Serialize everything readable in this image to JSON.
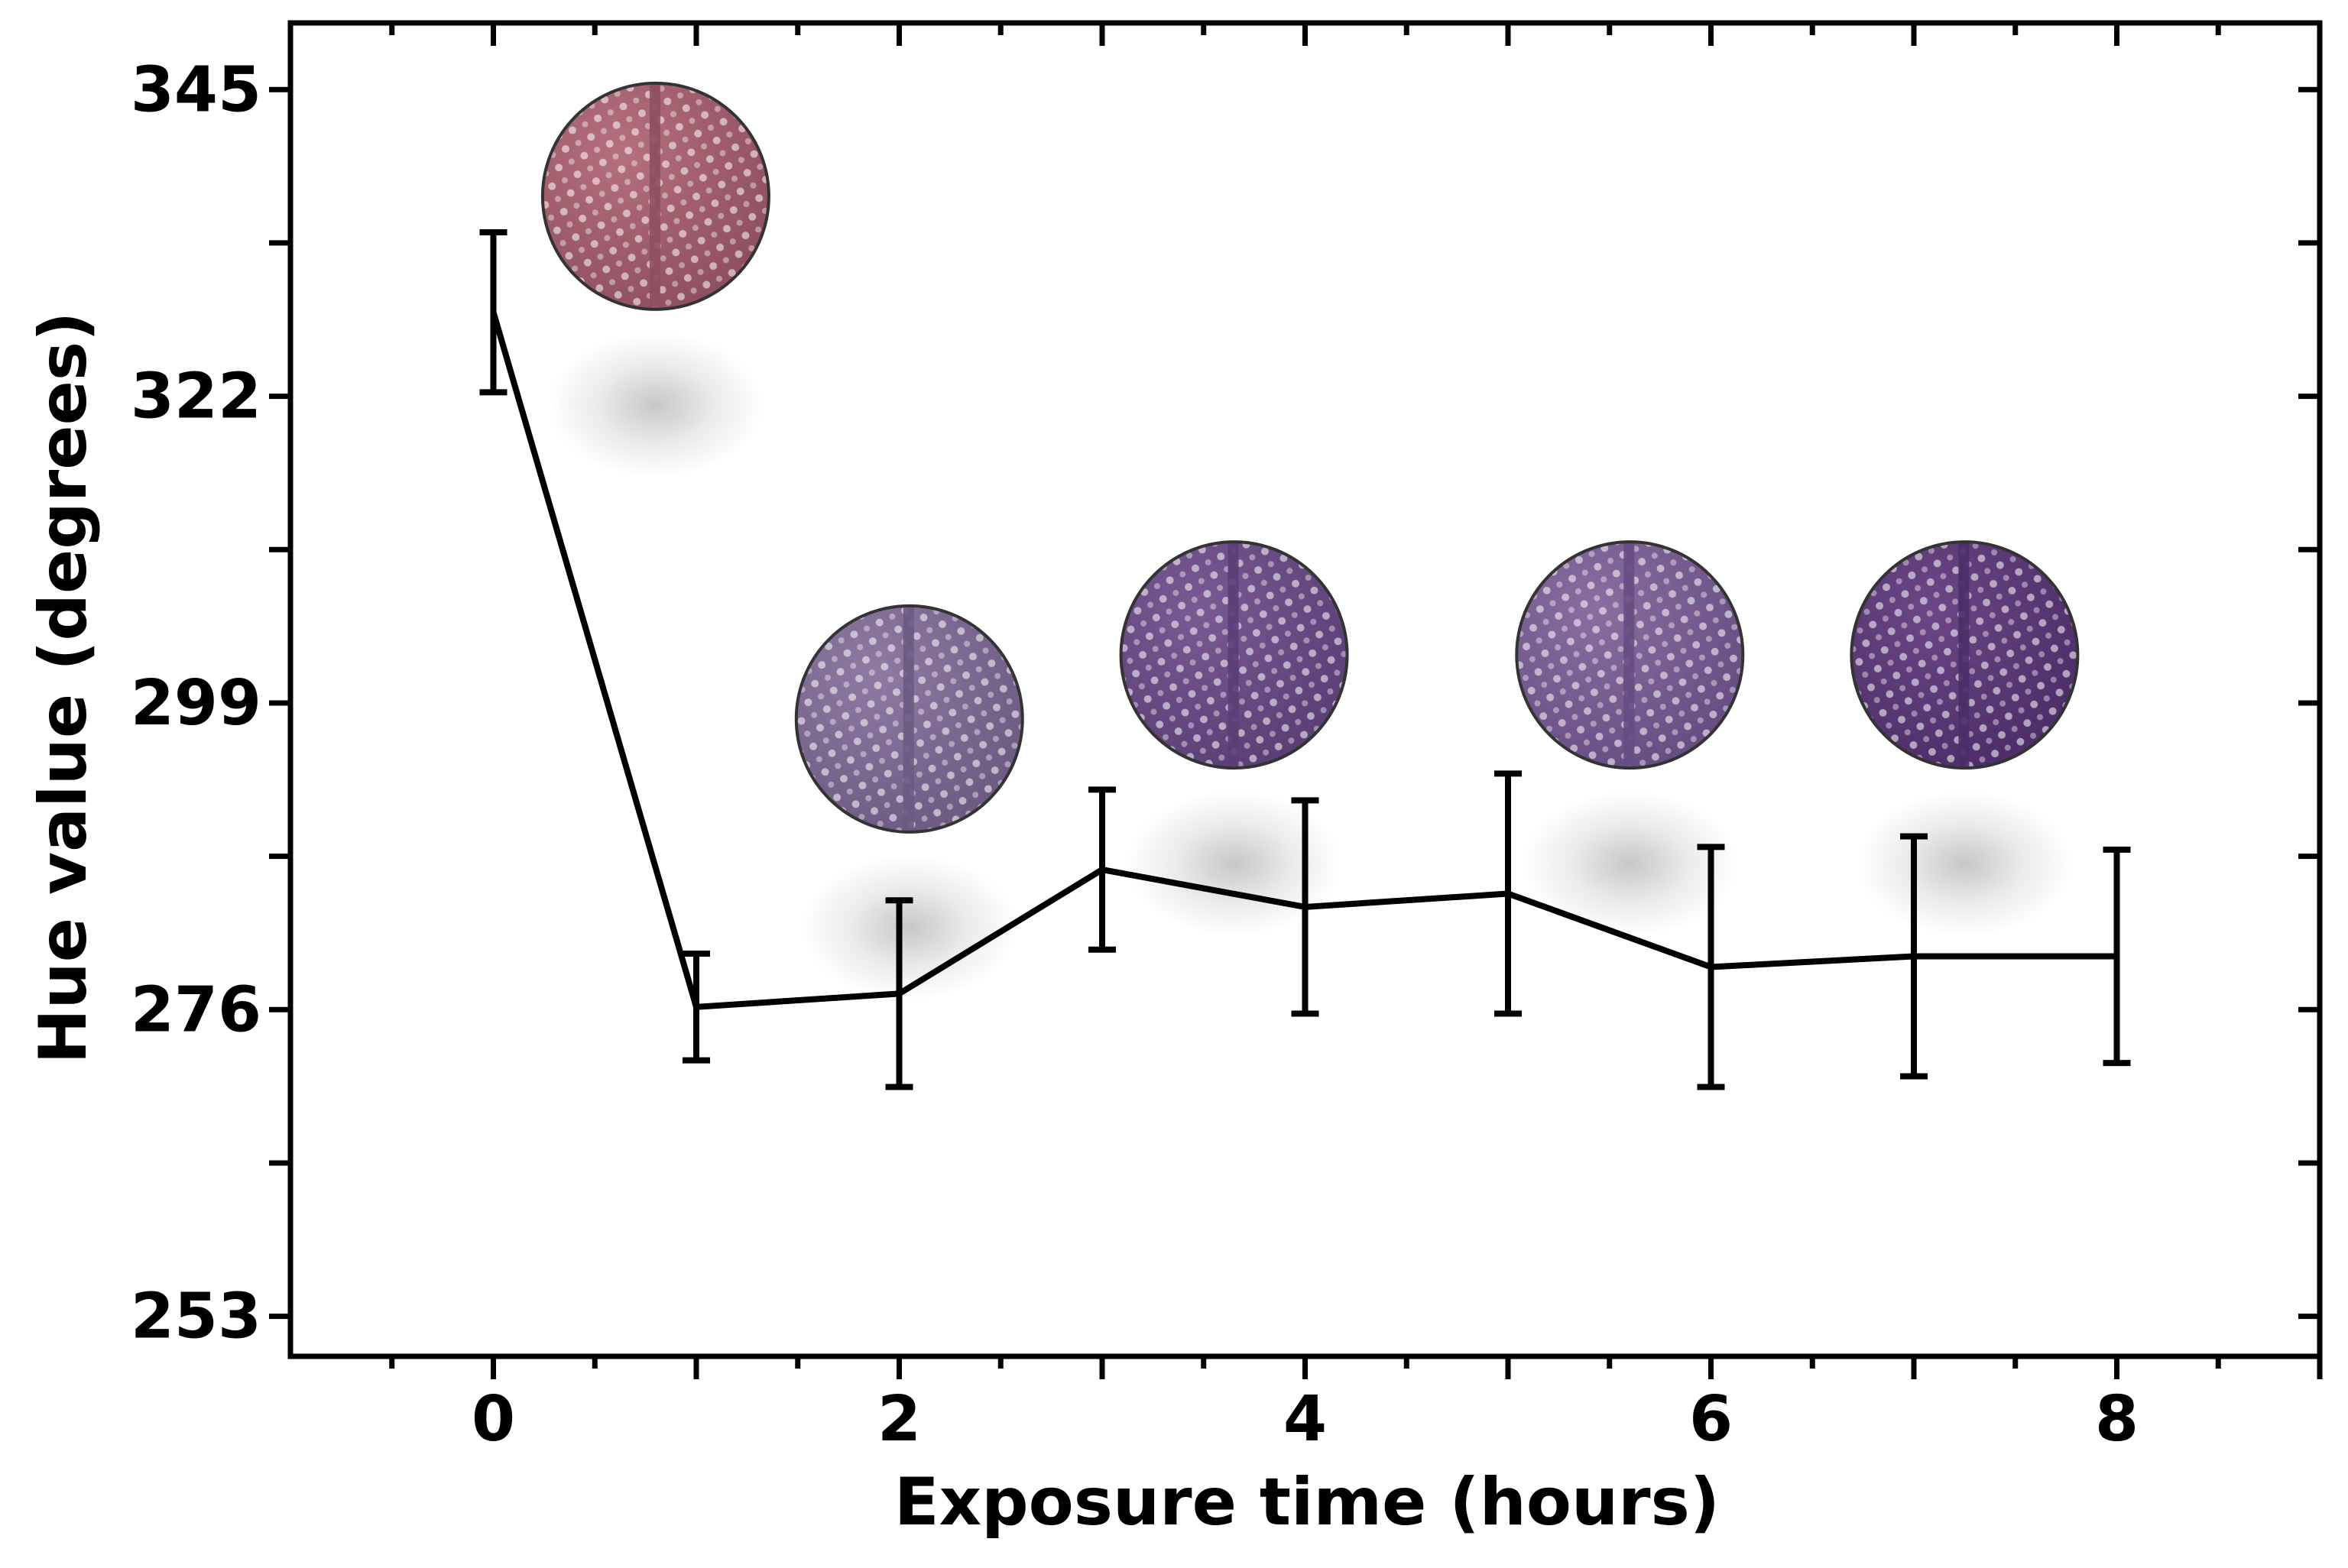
{
  "chart_data": {
    "type": "line",
    "title": "",
    "xlabel": "Exposure time (hours)",
    "ylabel": "Hue value (degrees)",
    "xlim": [
      -1,
      9
    ],
    "ylim": [
      250,
      350
    ],
    "xticks": [
      0,
      2,
      4,
      6,
      8
    ],
    "yticks": [
      253,
      276,
      299,
      322,
      345
    ],
    "grid": false,
    "series": [
      {
        "x": [
          0,
          1,
          2,
          3,
          4,
          5,
          6,
          7,
          8
        ],
        "y": [
          328.3,
          276.2,
          277.2,
          286.5,
          283.7,
          284.7,
          279.2,
          280.0,
          280.0
        ],
        "yerr": [
          6.0,
          4.0,
          7.0,
          6.0,
          8.0,
          9.0,
          9.0,
          9.0,
          8.0
        ]
      }
    ],
    "colors": {
      "line": "#000000"
    },
    "inset_images": [
      {
        "x": 0.8,
        "y": 337.0,
        "tint": "#b5707e",
        "shade": "#8e4f5e"
      },
      {
        "x": 2.05,
        "y": 297.8,
        "tint": "#8f7aa3",
        "shade": "#6c5a82"
      },
      {
        "x": 3.65,
        "y": 302.6,
        "tint": "#7a5a93",
        "shade": "#5a3e75"
      },
      {
        "x": 5.6,
        "y": 302.6,
        "tint": "#8a6ea0",
        "shade": "#664d82"
      },
      {
        "x": 7.25,
        "y": 302.6,
        "tint": "#6b4785",
        "shade": "#4d2d68"
      }
    ]
  }
}
